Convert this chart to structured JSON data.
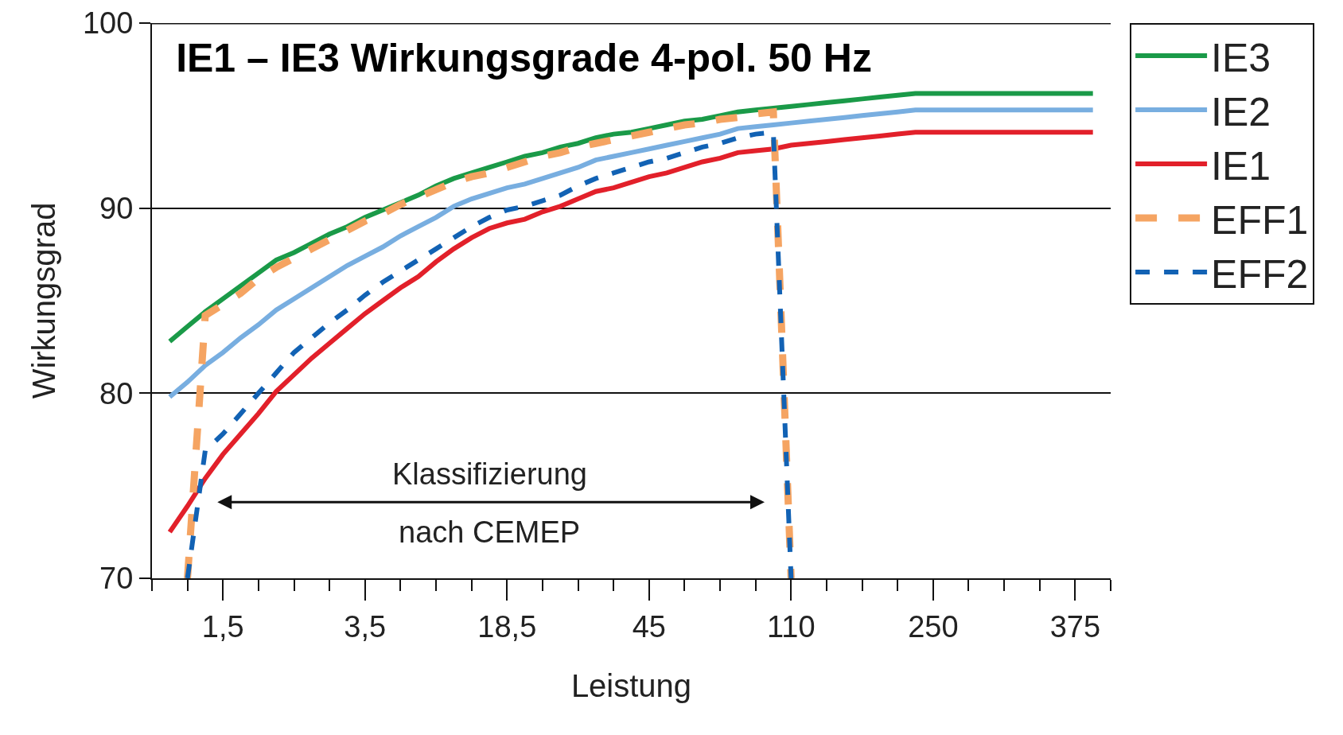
{
  "chart_data": {
    "type": "line",
    "title": "IE1 – IE3 Wirkungsgrade 4-pol. 50 Hz",
    "xlabel": "Leistung",
    "ylabel": "Wirkungsgrad",
    "categories": [
      null,
      null,
      null,
      null,
      "1,5",
      null,
      null,
      null,
      null,
      null,
      null,
      null,
      "3,5",
      null,
      null,
      null,
      null,
      null,
      null,
      null,
      "18,5",
      null,
      null,
      null,
      null,
      null,
      null,
      null,
      "45",
      null,
      null,
      null,
      null,
      null,
      null,
      null,
      "110",
      null,
      null,
      null,
      null,
      null,
      null,
      null,
      "250",
      null,
      null,
      null,
      null,
      null,
      null,
      null,
      "375",
      null,
      null
    ],
    "ylim": [
      70,
      100
    ],
    "yticks": [
      70,
      80,
      90,
      100
    ],
    "grid": "y",
    "legend": "top right",
    "marker": "none",
    "series": [
      {
        "name": "IE3",
        "color": "#1a9a48",
        "line_style": "solid",
        "values": [
          null,
          82.8,
          83.6,
          84.4,
          85.1,
          85.8,
          86.5,
          87.2,
          87.6,
          88.1,
          88.6,
          89.0,
          89.5,
          89.9,
          90.3,
          90.7,
          91.2,
          91.6,
          91.9,
          92.2,
          92.5,
          92.8,
          93.0,
          93.3,
          93.5,
          93.8,
          94.0,
          94.1,
          94.3,
          94.5,
          94.7,
          94.8,
          95.0,
          95.2,
          95.3,
          95.4,
          95.5,
          95.6,
          95.7,
          95.8,
          95.9,
          96.0,
          96.1,
          96.2,
          96.2,
          96.2,
          96.2,
          96.2,
          96.2,
          96.2,
          96.2,
          96.2,
          96.2,
          96.2,
          null
        ]
      },
      {
        "name": "IE2",
        "color": "#78aee0",
        "line_style": "solid",
        "values": [
          null,
          79.8,
          80.6,
          81.5,
          82.2,
          83.0,
          83.7,
          84.5,
          85.1,
          85.7,
          86.3,
          86.9,
          87.4,
          87.9,
          88.5,
          89.0,
          89.5,
          90.1,
          90.5,
          90.8,
          91.1,
          91.3,
          91.6,
          91.9,
          92.2,
          92.6,
          92.8,
          93.0,
          93.2,
          93.4,
          93.6,
          93.8,
          94.0,
          94.3,
          94.4,
          94.5,
          94.6,
          94.7,
          94.8,
          94.9,
          95.0,
          95.1,
          95.2,
          95.3,
          95.3,
          95.3,
          95.3,
          95.3,
          95.3,
          95.3,
          95.3,
          95.3,
          95.3,
          95.3,
          null
        ]
      },
      {
        "name": "IE1",
        "color": "#e2202a",
        "line_style": "solid",
        "values": [
          null,
          72.5,
          73.9,
          75.4,
          76.7,
          77.8,
          78.9,
          80.1,
          81.0,
          81.9,
          82.7,
          83.5,
          84.3,
          85.0,
          85.7,
          86.3,
          87.1,
          87.8,
          88.4,
          88.9,
          89.2,
          89.4,
          89.8,
          90.1,
          90.5,
          90.9,
          91.1,
          91.4,
          91.7,
          91.9,
          92.2,
          92.5,
          92.7,
          93.0,
          93.1,
          93.2,
          93.4,
          93.5,
          93.6,
          93.7,
          93.8,
          93.9,
          94.0,
          94.1,
          94.1,
          94.1,
          94.1,
          94.1,
          94.1,
          94.1,
          94.1,
          94.1,
          94.1,
          94.1,
          null
        ]
      },
      {
        "name": "EFF1",
        "color": "#f5a462",
        "line_style": "dashed",
        "values": [
          null,
          null,
          70,
          84.2,
          84.8,
          85.4,
          86.2,
          86.8,
          87.3,
          87.8,
          88.3,
          88.8,
          89.3,
          89.7,
          90.2,
          90.6,
          91.0,
          91.4,
          91.7,
          91.9,
          92.2,
          92.5,
          92.8,
          93.0,
          93.3,
          93.5,
          93.7,
          93.9,
          94.1,
          94.3,
          94.5,
          94.6,
          94.8,
          94.9,
          95.1,
          95.2,
          70,
          null,
          null,
          null,
          null,
          null,
          null,
          null,
          null,
          null,
          null,
          null,
          null,
          null,
          null,
          null,
          null,
          null,
          null
        ]
      },
      {
        "name": "EFF2",
        "color": "#1262b4",
        "line_style": "dashed",
        "values": [
          null,
          null,
          70,
          76.9,
          77.8,
          78.9,
          80.0,
          81.1,
          82.2,
          83.0,
          83.8,
          84.5,
          85.3,
          86.0,
          86.6,
          87.2,
          87.8,
          88.4,
          89.0,
          89.5,
          89.9,
          90.1,
          90.4,
          90.7,
          91.2,
          91.6,
          91.9,
          92.2,
          92.5,
          92.7,
          93.0,
          93.3,
          93.5,
          93.8,
          94.0,
          94.1,
          70,
          null,
          null,
          null,
          null,
          null,
          null,
          null,
          null,
          null,
          null,
          null,
          null,
          null,
          null,
          null,
          null,
          null,
          null
        ]
      }
    ],
    "annotations": [
      "Klassifizierung",
      "nach CEMEP"
    ]
  }
}
